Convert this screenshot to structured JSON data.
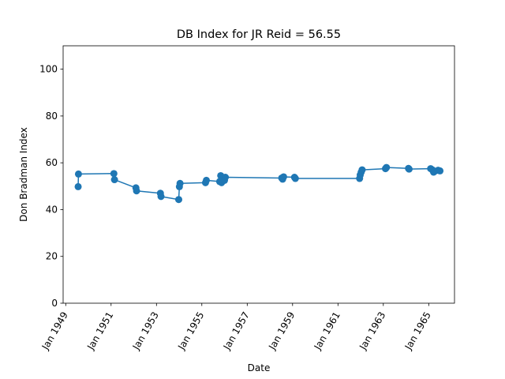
{
  "chart_data": {
    "type": "line",
    "title": "DB Index for JR Reid = 56.55",
    "xlabel": "Date",
    "ylabel": "Don Bradman Index",
    "ylim": [
      0,
      110
    ],
    "yticks": [
      0,
      20,
      40,
      60,
      80,
      100
    ],
    "xlim": [
      "1948-11-20",
      "1966-02-20"
    ],
    "xticks": [
      {
        "date": "1949-01-01",
        "label": "Jan 1949"
      },
      {
        "date": "1951-01-01",
        "label": "Jan 1951"
      },
      {
        "date": "1953-01-01",
        "label": "Jan 1953"
      },
      {
        "date": "1955-01-01",
        "label": "Jan 1955"
      },
      {
        "date": "1957-01-01",
        "label": "Jan 1957"
      },
      {
        "date": "1959-01-01",
        "label": "Jan 1959"
      },
      {
        "date": "1961-01-01",
        "label": "Jan 1961"
      },
      {
        "date": "1963-01-01",
        "label": "Jan 1963"
      },
      {
        "date": "1965-01-01",
        "label": "Jan 1965"
      }
    ],
    "grid": false,
    "color": "#1f77b4",
    "series": [
      {
        "points": [
          {
            "x": "1949-07-20",
            "y": 49.8
          },
          {
            "x": "1949-07-25",
            "y": 55.2
          },
          {
            "x": "1951-02-15",
            "y": 55.4
          },
          {
            "x": "1951-02-25",
            "y": 52.8
          },
          {
            "x": "1952-02-05",
            "y": 49.3
          },
          {
            "x": "1952-02-15",
            "y": 48.0
          },
          {
            "x": "1953-03-05",
            "y": 47.0
          },
          {
            "x": "1953-03-15",
            "y": 45.6
          },
          {
            "x": "1953-12-25",
            "y": 44.3
          },
          {
            "x": "1954-01-05",
            "y": 49.8
          },
          {
            "x": "1954-01-15",
            "y": 51.2
          },
          {
            "x": "1955-03-01",
            "y": 51.5
          },
          {
            "x": "1955-03-15",
            "y": 52.5
          },
          {
            "x": "1955-10-15",
            "y": 52.0
          },
          {
            "x": "1955-11-01",
            "y": 54.5
          },
          {
            "x": "1955-11-15",
            "y": 51.5
          },
          {
            "x": "1955-12-01",
            "y": 53.0
          },
          {
            "x": "1956-01-01",
            "y": 52.5
          },
          {
            "x": "1956-01-15",
            "y": 53.8
          },
          {
            "x": "1958-07-10",
            "y": 53.5
          },
          {
            "x": "1958-07-25",
            "y": 53.0
          },
          {
            "x": "1958-08-10",
            "y": 54.0
          },
          {
            "x": "1959-02-01",
            "y": 53.8
          },
          {
            "x": "1959-02-15",
            "y": 53.3
          },
          {
            "x": "1961-12-15",
            "y": 53.3
          },
          {
            "x": "1961-12-25",
            "y": 54.8
          },
          {
            "x": "1962-01-10",
            "y": 56.0
          },
          {
            "x": "1962-01-25",
            "y": 57.0
          },
          {
            "x": "1963-02-05",
            "y": 57.5
          },
          {
            "x": "1963-02-20",
            "y": 58.0
          },
          {
            "x": "1964-02-10",
            "y": 57.6
          },
          {
            "x": "1964-02-20",
            "y": 57.3
          },
          {
            "x": "1965-02-01",
            "y": 57.5
          },
          {
            "x": "1965-03-01",
            "y": 57.0
          },
          {
            "x": "1965-03-20",
            "y": 56.0
          },
          {
            "x": "1965-04-10",
            "y": 56.4
          },
          {
            "x": "1965-06-01",
            "y": 56.8
          },
          {
            "x": "1965-07-01",
            "y": 56.55
          }
        ]
      }
    ]
  }
}
